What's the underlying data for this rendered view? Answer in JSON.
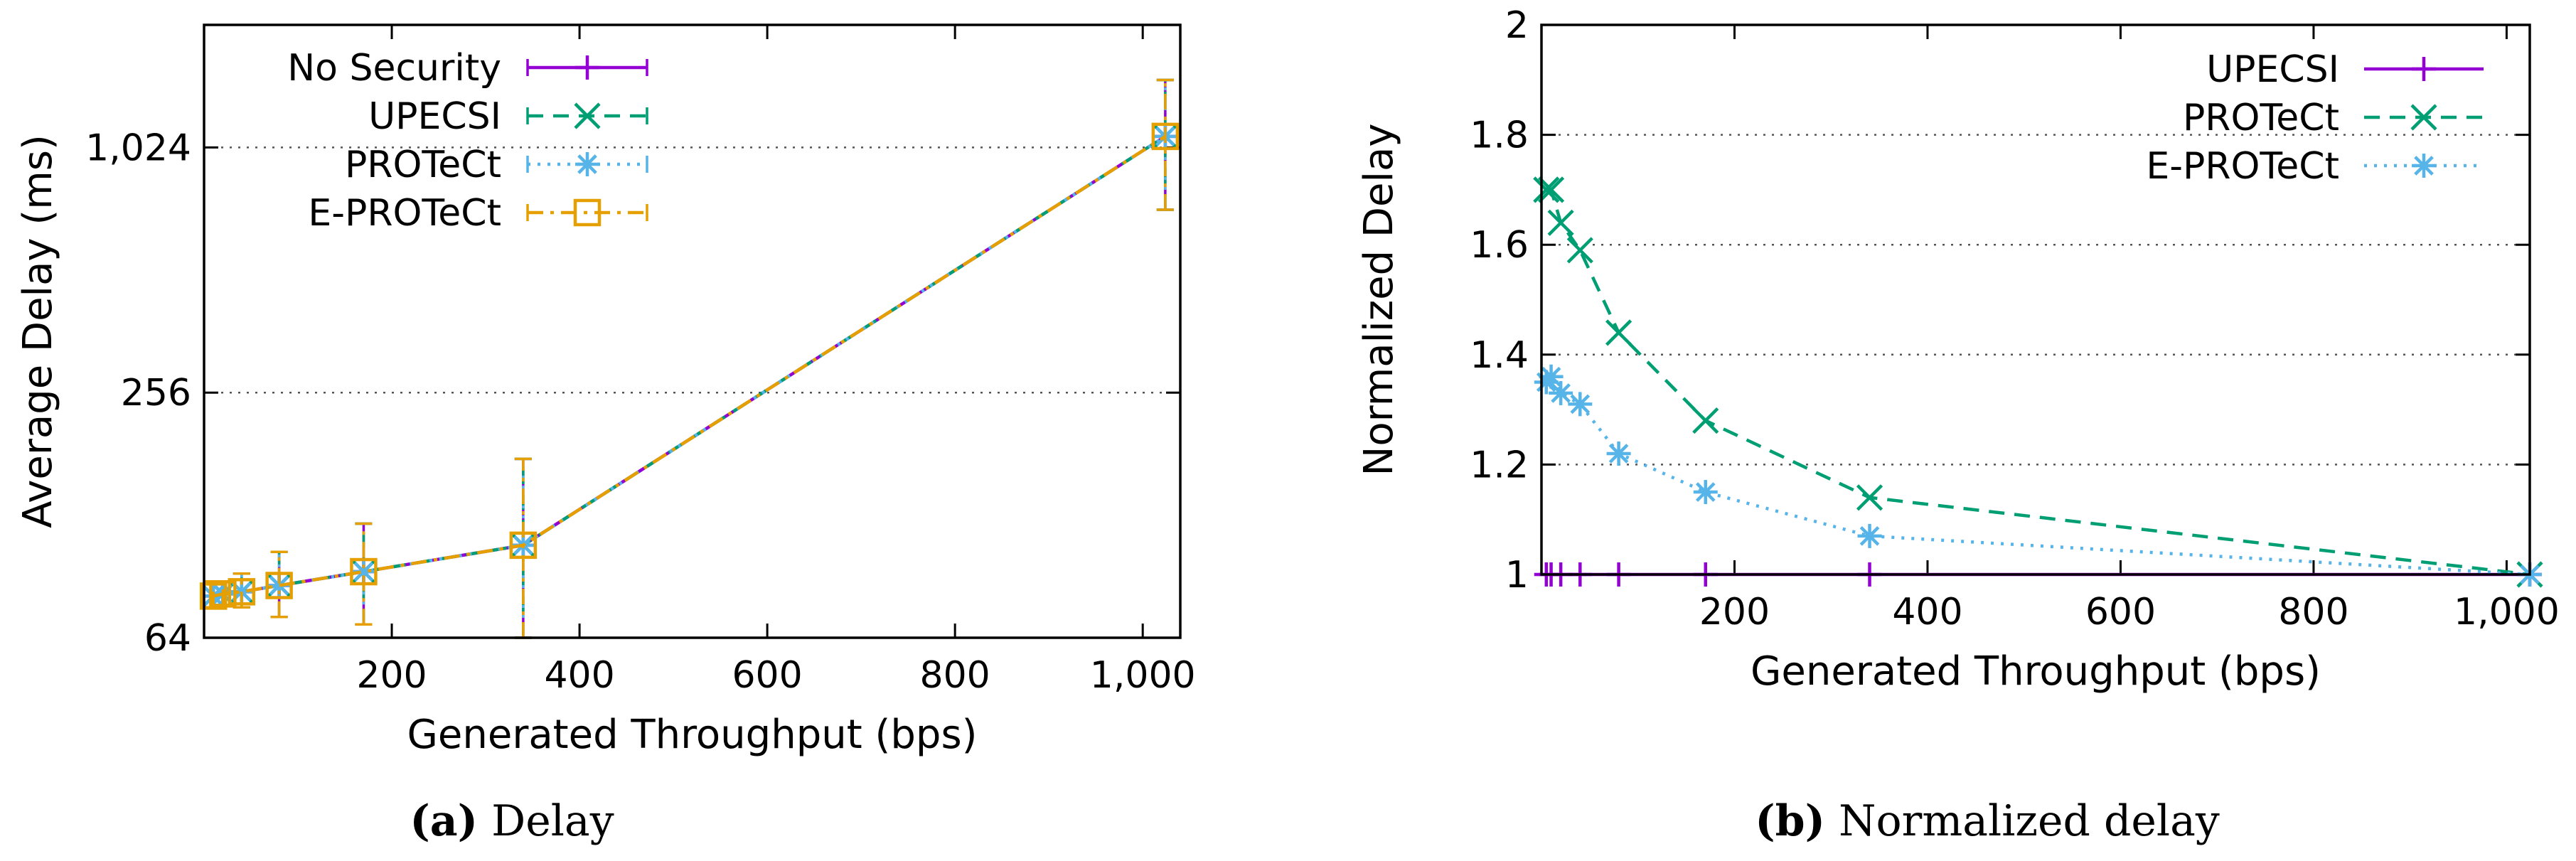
{
  "chart_data": [
    {
      "id": "a",
      "type": "line",
      "y_scale": "log2",
      "xlabel": "Generated Throughput (bps)",
      "ylabel": "Average Delay (ms)",
      "xlim": [
        0,
        1040
      ],
      "ylim": [
        64,
        2048
      ],
      "xticks": [
        200,
        400,
        600,
        800,
        1000
      ],
      "xtick_labels": [
        "200",
        "400",
        "600",
        "800",
        "1,000"
      ],
      "yticks": [
        64,
        256,
        1024
      ],
      "ytick_labels": [
        "64",
        "256",
        "1,024"
      ],
      "grid": "horizontal dotted at y ticks",
      "legend_position": "top-left",
      "x": [
        10,
        20,
        40,
        80,
        170,
        340,
        1024
      ],
      "series": [
        {
          "name": "No Security",
          "color": "#9400d3",
          "marker": "plus",
          "line": "solid",
          "values": [
            81,
            82,
            83,
            86,
            93,
            108,
            1090
          ],
          "err_low": [
            76,
            77,
            76,
            72,
            69,
            64,
            720
          ],
          "err_high": [
            88,
            88,
            92,
            104,
            122,
            176,
            1500
          ]
        },
        {
          "name": "UPECSI",
          "color": "#009e73",
          "marker": "cross",
          "line": "dashed",
          "values": [
            81,
            82,
            83,
            86,
            93,
            108,
            1090
          ],
          "err_low": [
            76,
            77,
            76,
            72,
            69,
            64,
            720
          ],
          "err_high": [
            88,
            88,
            92,
            104,
            122,
            176,
            1500
          ]
        },
        {
          "name": "PROTeCt",
          "color": "#56b4e9",
          "marker": "asterisk",
          "line": "dotted",
          "values": [
            81,
            82,
            83,
            86,
            93,
            108,
            1090
          ],
          "err_low": [
            76,
            77,
            76,
            72,
            69,
            64,
            720
          ],
          "err_high": [
            88,
            88,
            92,
            104,
            122,
            176,
            1500
          ]
        },
        {
          "name": "E-PROTeCt",
          "color": "#e69f00",
          "marker": "square",
          "line": "dashdot",
          "values": [
            81,
            82,
            83,
            86,
            93,
            108,
            1090
          ],
          "err_low": [
            76,
            77,
            76,
            72,
            69,
            64,
            720
          ],
          "err_high": [
            88,
            88,
            92,
            104,
            122,
            176,
            1500
          ]
        }
      ],
      "caption_letter": "(a)",
      "caption_text": " Delay"
    },
    {
      "id": "b",
      "type": "line",
      "xlabel": "Generated Throughput (bps)",
      "ylabel": "Normalized Delay",
      "xlim": [
        0,
        1024
      ],
      "ylim": [
        1,
        2
      ],
      "xticks": [
        200,
        400,
        600,
        800,
        1000
      ],
      "xtick_labels": [
        "200",
        "400",
        "600",
        "800",
        "1,000"
      ],
      "yticks": [
        1,
        1.2,
        1.4,
        1.6,
        1.8,
        2
      ],
      "ytick_labels": [
        "1",
        "1.2",
        "1.4",
        "1.6",
        "1.8",
        "2"
      ],
      "grid": "horizontal dotted at y ticks",
      "legend_position": "top-right",
      "x": [
        5,
        10,
        20,
        40,
        80,
        170,
        340,
        1024
      ],
      "series": [
        {
          "name": "UPECSI",
          "color": "#9400d3",
          "marker": "plus",
          "line": "solid",
          "values": [
            1,
            1,
            1,
            1,
            1,
            1,
            1,
            1
          ]
        },
        {
          "name": "PROTeCt",
          "color": "#009e73",
          "marker": "cross",
          "line": "dashed",
          "values": [
            1.7,
            1.7,
            1.64,
            1.59,
            1.44,
            1.28,
            1.14,
            1.0
          ]
        },
        {
          "name": "E-PROTeCt",
          "color": "#56b4e9",
          "marker": "asterisk",
          "line": "dotted",
          "values": [
            1.35,
            1.36,
            1.33,
            1.31,
            1.22,
            1.15,
            1.07,
            1.0
          ]
        }
      ],
      "caption_letter": "(b)",
      "caption_text": " Normalized delay"
    }
  ]
}
